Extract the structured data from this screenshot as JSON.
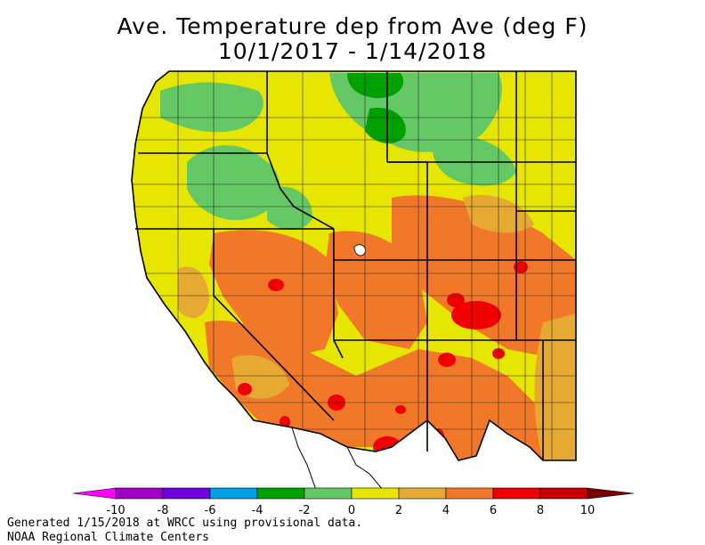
{
  "title": {
    "line1": "Ave. Temperature dep from Ave (deg F)",
    "line2": "10/1/2017 - 1/14/2018"
  },
  "legend": {
    "bins": [
      {
        "color": "#ff00ff"
      },
      {
        "color": "#a000c8"
      },
      {
        "color": "#6e00dc"
      },
      {
        "color": "#00a0e6"
      },
      {
        "color": "#00a000"
      },
      {
        "color": "#64c864"
      },
      {
        "color": "#e6e600"
      },
      {
        "color": "#e6aa32"
      },
      {
        "color": "#f07828"
      },
      {
        "color": "#f00000"
      },
      {
        "color": "#c80000"
      },
      {
        "color": "#780000"
      }
    ],
    "ticks": [
      "-10",
      "-8",
      "-6",
      "-4",
      "-2",
      "0",
      "2",
      "4",
      "6",
      "8",
      "10"
    ]
  },
  "colors": {
    "land_base": "#e6e600",
    "warm": "#f07828",
    "mild_warm": "#e6aa32",
    "cool": "#64c864",
    "cold": "#00a000",
    "hot": "#f00000",
    "boundary": "#000000",
    "county_line": "#2a2a2a"
  },
  "footer": {
    "line1": "Generated 1/15/2018 at WRCC using provisional data.",
    "line2": "NOAA Regional Climate Centers"
  }
}
